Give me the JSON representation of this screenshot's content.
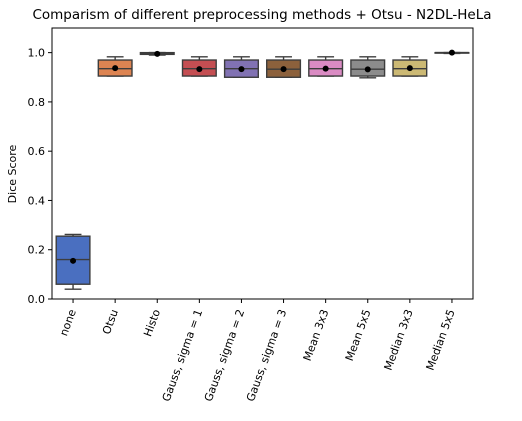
{
  "chart_data": {
    "type": "box",
    "title": "Comparism of different preprocessing methods + Otsu - N2DL-HeLa",
    "xlabel": "",
    "ylabel": "Dice Score",
    "ylim": [
      0.0,
      1.1
    ],
    "yticks": [
      "0.0",
      "0.2",
      "0.4",
      "0.6",
      "0.8",
      "1.0"
    ],
    "grid": false,
    "categories": [
      "none",
      "Otsu",
      "Histo",
      "Gauss, sigma = 1",
      "Gauss, sigma = 2",
      "Gauss, sigma = 3",
      "Mean 3x3",
      "Mean 5x5",
      "Median 3x3",
      "Median 5x5"
    ],
    "colors": [
      "#4a6fc0",
      "#dd8452",
      "#55a868",
      "#c44e52",
      "#8172b3",
      "#8c613c",
      "#da8bc3",
      "#8c8c8c",
      "#ccb974",
      "#64b5cd"
    ],
    "boxes": [
      {
        "whisker_low": 0.04,
        "q1": 0.06,
        "median": 0.16,
        "q3": 0.255,
        "whisker_high": 0.262,
        "mean": 0.155
      },
      {
        "whisker_low": 0.905,
        "q1": 0.905,
        "median": 0.935,
        "q3": 0.97,
        "whisker_high": 0.983,
        "mean": 0.937
      },
      {
        "whisker_low": 0.99,
        "q1": 0.993,
        "median": 0.997,
        "q3": 1.0,
        "whisker_high": 1.0,
        "mean": 0.995
      },
      {
        "whisker_low": 0.905,
        "q1": 0.905,
        "median": 0.935,
        "q3": 0.97,
        "whisker_high": 0.983,
        "mean": 0.933
      },
      {
        "whisker_low": 0.9,
        "q1": 0.9,
        "median": 0.935,
        "q3": 0.97,
        "whisker_high": 0.983,
        "mean": 0.933
      },
      {
        "whisker_low": 0.9,
        "q1": 0.9,
        "median": 0.933,
        "q3": 0.97,
        "whisker_high": 0.983,
        "mean": 0.933
      },
      {
        "whisker_low": 0.905,
        "q1": 0.905,
        "median": 0.935,
        "q3": 0.97,
        "whisker_high": 0.983,
        "mean": 0.935
      },
      {
        "whisker_low": 0.898,
        "q1": 0.905,
        "median": 0.933,
        "q3": 0.97,
        "whisker_high": 0.983,
        "mean": 0.932
      },
      {
        "whisker_low": 0.905,
        "q1": 0.905,
        "median": 0.935,
        "q3": 0.97,
        "whisker_high": 0.983,
        "mean": 0.937
      },
      {
        "whisker_low": 0.997,
        "q1": 0.998,
        "median": 1.0,
        "q3": 1.0,
        "whisker_high": 1.0,
        "mean": 1.0
      }
    ]
  }
}
